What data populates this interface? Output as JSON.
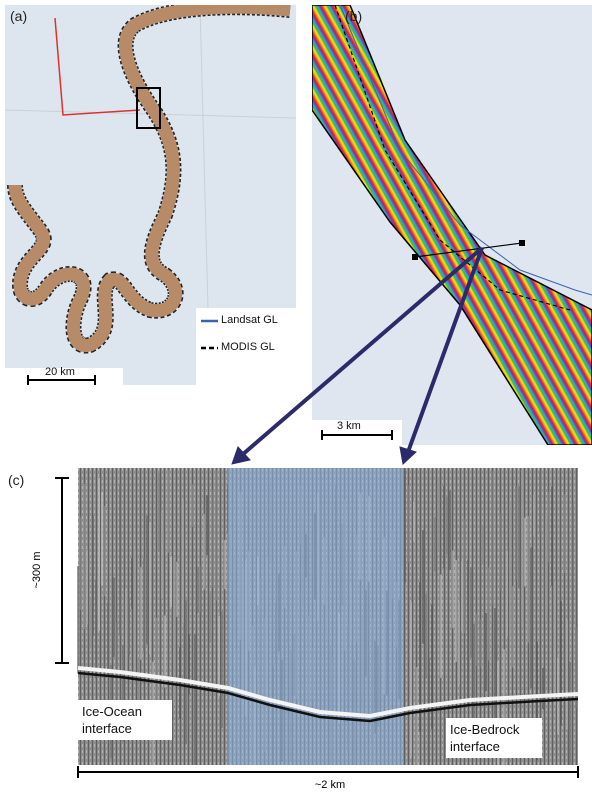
{
  "panels": {
    "a": {
      "label": "(a)",
      "scale_bar": "20 km",
      "legend": [
        "Landsat GL",
        "MODIS GL"
      ]
    },
    "b": {
      "label": "(b)",
      "scale_bar": "3 km"
    },
    "c": {
      "label": "(c)",
      "vertical_scale": "~300 m",
      "horizontal_scale": "~2 km",
      "annotations": [
        "Ice-Ocean interface",
        "Ice-Bedrock interface"
      ]
    }
  }
}
